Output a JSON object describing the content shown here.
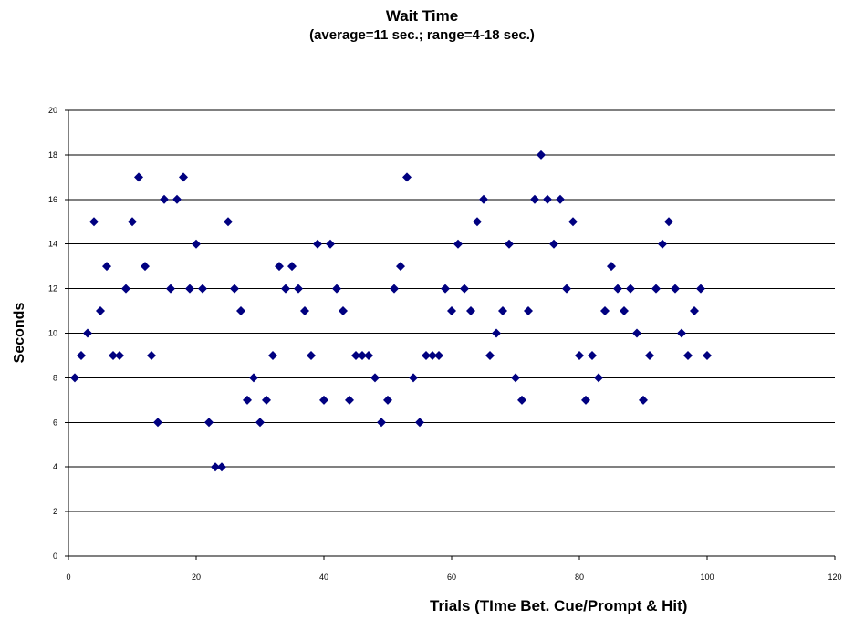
{
  "chart_data": {
    "type": "scatter",
    "title": "Wait Time",
    "subtitle": "(average=11 sec.; range=4-18 sec.)",
    "xlabel": "Trials (TIme Bet. Cue/Prompt & Hit)",
    "ylabel": "Seconds",
    "xlim": [
      0,
      120
    ],
    "ylim": [
      0,
      20
    ],
    "xticks": [
      0,
      20,
      40,
      60,
      80,
      100,
      120
    ],
    "yticks": [
      0,
      2,
      4,
      6,
      8,
      10,
      12,
      14,
      16,
      18,
      20
    ],
    "grid": "horizontal",
    "marker": "diamond",
    "marker_color": "#000080",
    "x": [
      1,
      2,
      3,
      4,
      5,
      6,
      7,
      8,
      9,
      10,
      11,
      12,
      13,
      14,
      15,
      16,
      17,
      18,
      19,
      20,
      21,
      22,
      23,
      24,
      25,
      26,
      27,
      28,
      29,
      30,
      31,
      32,
      33,
      34,
      35,
      36,
      37,
      38,
      39,
      40,
      41,
      42,
      43,
      44,
      45,
      46,
      47,
      48,
      49,
      50,
      51,
      52,
      53,
      54,
      55,
      56,
      57,
      58,
      59,
      60,
      61,
      62,
      63,
      64,
      65,
      66,
      67,
      68,
      69,
      70,
      71,
      72,
      73,
      74,
      75,
      76,
      77,
      78,
      79,
      80,
      81,
      82,
      83,
      84,
      85,
      86,
      87,
      88,
      89,
      90,
      91,
      92,
      93,
      94,
      95,
      96,
      97,
      98,
      99,
      100
    ],
    "y": [
      8,
      9,
      10,
      15,
      11,
      13,
      9,
      9,
      12,
      15,
      17,
      13,
      9,
      6,
      16,
      12,
      16,
      17,
      12,
      14,
      12,
      6,
      4,
      4,
      15,
      12,
      11,
      7,
      8,
      6,
      7,
      9,
      13,
      12,
      13,
      12,
      11,
      9,
      14,
      7,
      14,
      12,
      11,
      7,
      9,
      9,
      9,
      8,
      6,
      7,
      12,
      13,
      17,
      8,
      6,
      9,
      9,
      9,
      12,
      11,
      14,
      12,
      11,
      15,
      16,
      9,
      10,
      11,
      14,
      8,
      7,
      11,
      16,
      18,
      16,
      14,
      16,
      12,
      15,
      9,
      7,
      9,
      8,
      11,
      13,
      12,
      11,
      12,
      10,
      7,
      9,
      12,
      14,
      15,
      12,
      10,
      9,
      11,
      12,
      9
    ]
  }
}
